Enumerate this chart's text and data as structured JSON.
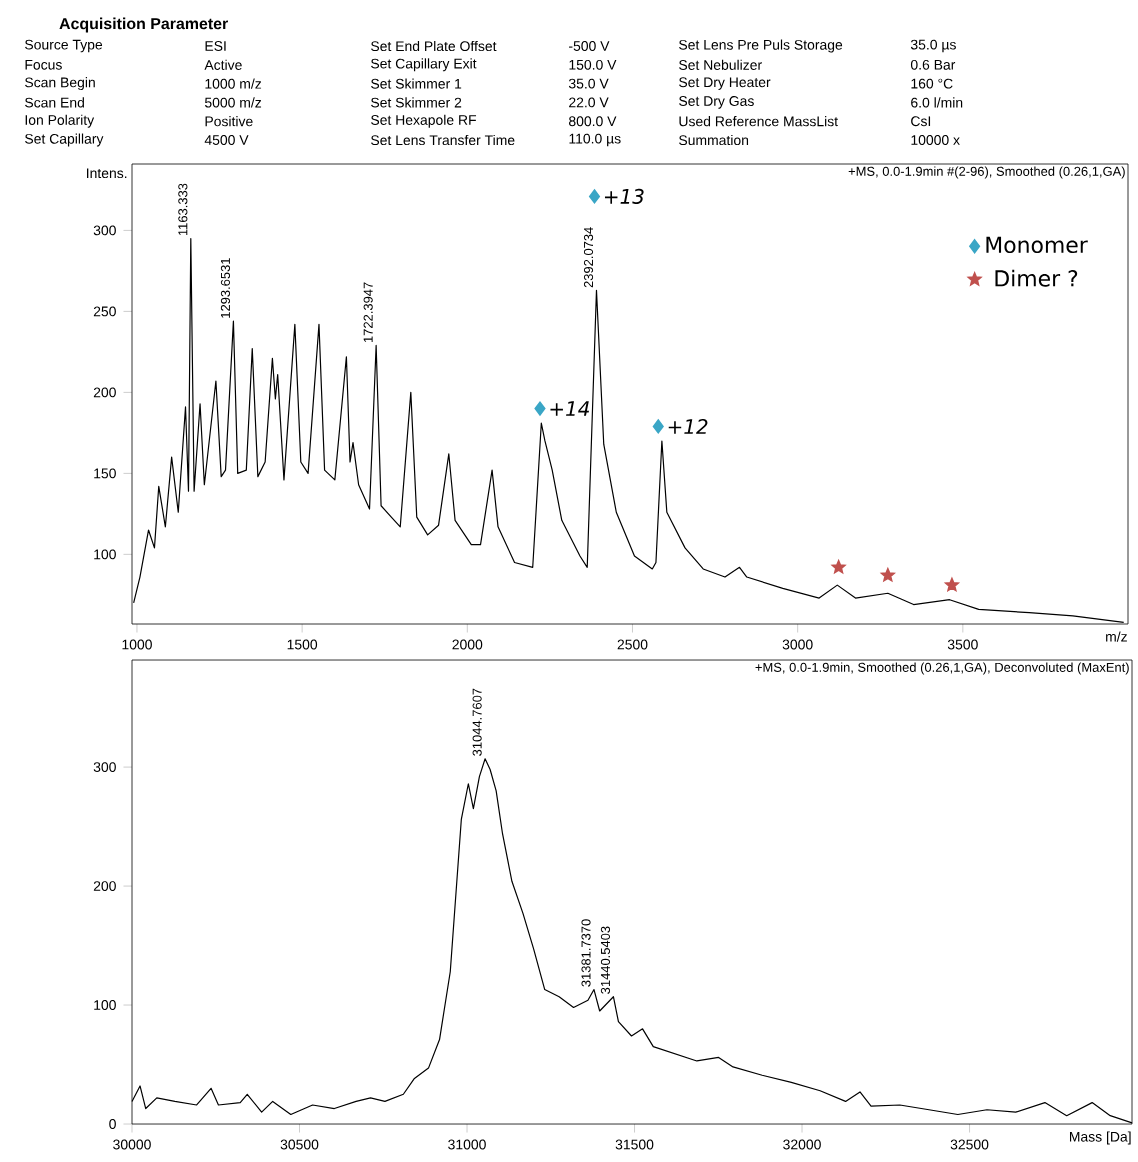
{
  "chart_data": [
    {
      "type": "other",
      "title": "Acquisition Parameter",
      "annotations": [
        "Source Type",
        "Focus",
        "Scan Begin",
        "Scan End",
        "Ion Polarity",
        "Set Capillary",
        "ESI",
        "Active",
        "1000 m/z",
        "5000 m/z",
        "Positive",
        "4500 V",
        "Set End Plate Offset",
        "Set Capillary Exit",
        "Set Skimmer 1",
        "Set Skimmer 2",
        "Set Hexapole RF",
        "Set Lens Transfer Time",
        "-500 V",
        "150.0 V",
        "35.0 V",
        "22.0 V",
        "800.0 V",
        "110.0 µs",
        "Set Lens Pre Puls Storage",
        "Set Nebulizer",
        "Set Dry Heater",
        "Set Dry Gas",
        "Used Reference MassList",
        "Summation",
        "35.0 µs",
        "0.6 Bar",
        "160 °C",
        "6.0 l/min",
        "CsI",
        "10000 x"
      ]
    },
    {
      "type": "line",
      "xlabel": "m/z",
      "ylabel": "Intens.",
      "xlim": [
        985,
        4000
      ],
      "ylim": [
        57,
        341
      ],
      "xticks": [
        1000,
        1500,
        2000,
        2500,
        3000,
        3500
      ],
      "yticks": [
        100,
        150,
        200,
        250,
        300
      ],
      "legend": "top right",
      "series": [
        {
          "color": "#000000",
          "x": [
            990,
            1009,
            1035,
            1053,
            1066,
            1086,
            1105,
            1125,
            1147,
            1156,
            1163,
            1173,
            1191,
            1204,
            1239,
            1255,
            1268,
            1292,
            1305,
            1331,
            1349,
            1366,
            1388,
            1410,
            1419,
            1426,
            1445,
            1478,
            1496,
            1518,
            1551,
            1568,
            1599,
            1634,
            1645,
            1654,
            1671,
            1704,
            1724,
            1739,
            1770,
            1797,
            1829,
            1847,
            1880,
            1913,
            1944,
            1963,
            2012,
            2040,
            2075,
            2093,
            2143,
            2198,
            2224,
            2235,
            2257,
            2286,
            2341,
            2363,
            2391,
            2413,
            2451,
            2506,
            2560,
            2571,
            2589,
            2604,
            2659,
            2714,
            2780,
            2824,
            2846,
            2955,
            3065,
            3120,
            3175,
            3273,
            3351,
            3460,
            3548,
            3701,
            3833,
            3987
          ],
          "values": [
            70,
            86,
            115,
            104,
            142,
            117,
            160,
            126,
            191,
            139,
            295,
            139,
            193,
            143,
            207,
            148,
            152,
            244,
            150,
            152,
            227,
            148,
            157,
            221,
            196,
            211,
            146,
            242,
            157,
            150,
            242,
            152,
            146,
            222,
            157,
            169,
            143,
            128,
            229,
            130,
            123,
            117,
            200,
            123,
            112,
            118,
            162,
            121,
            106,
            106,
            152,
            117,
            95,
            92,
            181,
            170,
            152,
            121,
            99,
            92,
            263,
            168,
            126,
            99,
            91,
            95,
            170,
            126,
            104,
            91,
            86,
            92,
            86,
            79,
            73,
            81,
            73,
            76,
            69,
            72,
            66,
            64,
            62,
            58
          ]
        },
        {
          "type": "scatter",
          "name": "Monomer",
          "color": "#3aa6c6",
          "marker": "diamond",
          "x": [
            2220,
            2385,
            2578
          ],
          "values": [
            190,
            321,
            179
          ]
        },
        {
          "type": "scatter",
          "name": "Dimer ?",
          "color": "#c0504d",
          "marker": "star",
          "x": [
            3124,
            3273,
            3467
          ],
          "values": [
            92,
            87,
            81
          ]
        }
      ],
      "annotations": [
        "+MS, 0.0-1.9min #(2-96), Smoothed (0.26,1,GA)",
        {
          "text": "1163.333",
          "x": 1163,
          "y": 295
        },
        {
          "text": "1293.6531",
          "x": 1292,
          "y": 244
        },
        {
          "text": "1722.3947",
          "x": 1724,
          "y": 229
        },
        {
          "text": "2392.0734",
          "x": 2391,
          "y": 263
        },
        {
          "text": "+14",
          "x": 2220,
          "y": 190
        },
        {
          "text": "+13",
          "x": 2385,
          "y": 321
        },
        {
          "text": "+12",
          "x": 2578,
          "y": 179
        }
      ]
    },
    {
      "type": "line",
      "xlabel": "Mass [Da]",
      "xlim": [
        30000,
        32985
      ],
      "ylim": [
        0,
        390
      ],
      "xticks": [
        30000,
        30500,
        31000,
        31500,
        32000,
        32500
      ],
      "yticks": [
        0,
        100,
        200,
        300
      ],
      "series": [
        {
          "color": "#000000",
          "x": [
            30000,
            30024,
            30041,
            30074,
            30128,
            30193,
            30236,
            30258,
            30323,
            30344,
            30387,
            30420,
            30474,
            30539,
            30604,
            30669,
            30712,
            30755,
            30810,
            30842,
            30885,
            30918,
            30950,
            30983,
            31004,
            31019,
            31037,
            31054,
            31069,
            31087,
            31106,
            31134,
            31167,
            31199,
            31232,
            31275,
            31318,
            31361,
            31379,
            31396,
            31437,
            31452,
            31491,
            31524,
            31556,
            31621,
            31686,
            31751,
            31794,
            31881,
            31968,
            32054,
            32130,
            32173,
            32206,
            32292,
            32379,
            32465,
            32552,
            32638,
            32725,
            32790,
            32866,
            32920,
            32985
          ],
          "values": [
            19,
            32,
            13,
            22,
            19,
            16,
            30,
            16,
            18,
            25,
            10,
            19,
            8,
            16,
            13,
            19,
            22,
            19,
            25,
            38,
            47,
            71,
            128,
            256,
            286,
            265,
            292,
            307,
            298,
            280,
            244,
            204,
            177,
            147,
            113,
            107,
            98,
            104,
            113,
            95,
            107,
            86,
            74,
            80,
            65,
            59,
            53,
            56,
            48,
            41,
            35,
            28,
            19,
            27,
            15,
            16,
            12,
            8,
            12,
            10,
            18,
            7,
            18,
            7,
            1
          ]
        }
      ],
      "annotations": [
        "+MS, 0.0-1.9min, Smoothed (0.26,1,GA), Deconvoluted (MaxEnt)",
        {
          "text": "31044.7607",
          "x": 31054,
          "y": 307
        },
        {
          "text": "31381.7370",
          "x": 31379,
          "y": 113
        },
        {
          "text": "31440.5403",
          "x": 31437,
          "y": 107
        }
      ]
    }
  ]
}
